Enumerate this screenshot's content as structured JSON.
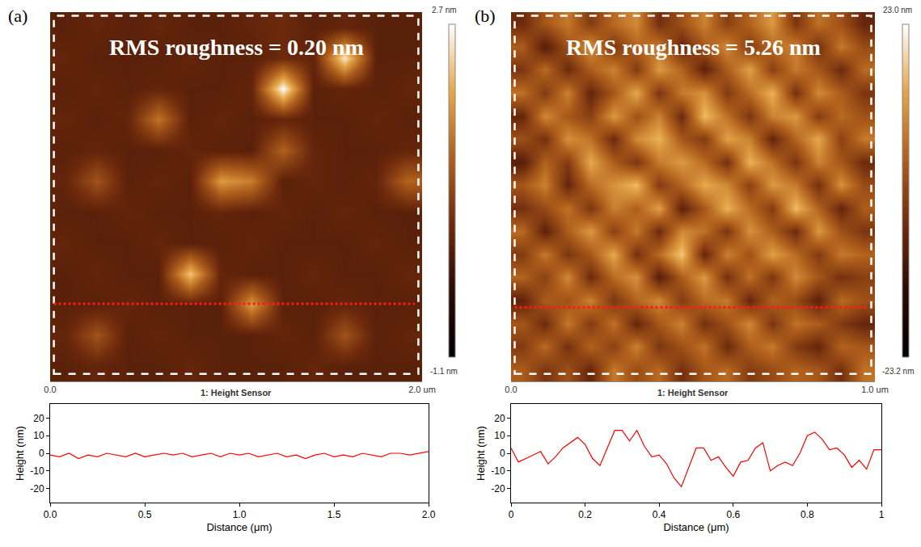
{
  "chart_data": [
    {
      "type": "heatmap",
      "panel": "(a)",
      "annotations": [
        "RMS roughness = 0.20 nm"
      ],
      "xlabel": "1: Height Sensor",
      "xlim": [
        0,
        2.0
      ],
      "xticks": [
        {
          "value": 0,
          "label": "0.0"
        },
        {
          "value": 2.0,
          "label": "2.0 um"
        }
      ],
      "ylim": [
        0,
        2.0
      ],
      "tick_labels": "x",
      "grid": false,
      "zlim": [
        -1.1,
        2.7
      ],
      "zticks": [
        {
          "value": 2.7,
          "label": "2.7 nm"
        },
        {
          "value": -1.1,
          "label": "-1.1 nm"
        }
      ],
      "profile": {
        "y": 0.42,
        "color": "#ff1a1a",
        "line_style": "dotted"
      },
      "z": [
        [
          0.2,
          0.3,
          0.2,
          0.2,
          0.3,
          0.2,
          0.2,
          0.2,
          0.3,
          0.2,
          0.2,
          0.2
        ],
        [
          0.3,
          1.0,
          0.2,
          0.3,
          0.2,
          0.2,
          0.2,
          0.3,
          0.2,
          1.0,
          0.2,
          0.3
        ],
        [
          0.2,
          0.2,
          0.3,
          0.2,
          0.2,
          0.2,
          1.8,
          0.2,
          0.2,
          0.3,
          0.2,
          0.2
        ],
        [
          0.2,
          0.3,
          0.2,
          0.2,
          2.2,
          0.3,
          0.2,
          0.2,
          0.3,
          0.2,
          0.2,
          0.3
        ],
        [
          0.3,
          0.2,
          0.2,
          0.3,
          0.2,
          0.2,
          0.3,
          0.2,
          0.2,
          0.2,
          0.3,
          0.2
        ],
        [
          0.2,
          0.2,
          0.3,
          0.2,
          0.2,
          0.3,
          0.2,
          0.3,
          0.2,
          0.3,
          0.2,
          0.2
        ],
        [
          0.3,
          1.0,
          0.2,
          0.3,
          0.2,
          1.8,
          1.5,
          0.2,
          0.3,
          0.2,
          0.3,
          1.2
        ],
        [
          0.2,
          0.3,
          0.2,
          0.2,
          0.3,
          0.2,
          0.2,
          1.2,
          0.3,
          0.2,
          0.2,
          0.3
        ],
        [
          0.3,
          0.2,
          0.3,
          1.4,
          0.2,
          0.3,
          0.2,
          0.3,
          0.2,
          0.2,
          0.3,
          0.2
        ],
        [
          0.2,
          0.3,
          0.2,
          0.3,
          0.2,
          0.2,
          0.3,
          2.7,
          0.2,
          0.3,
          0.2,
          0.3
        ],
        [
          0.3,
          0.2,
          0.2,
          0.2,
          0.3,
          0.2,
          0.2,
          0.4,
          0.3,
          2.5,
          0.2,
          0.2
        ],
        [
          0.2,
          0.3,
          0.2,
          0.3,
          0.2,
          0.2,
          0.3,
          0.4,
          0.2,
          0.3,
          0.2,
          0.2
        ]
      ]
    },
    {
      "type": "line",
      "xlabel": "Distance (μm)",
      "ylabel": "Height (nm)",
      "color": "#ff0000",
      "grid": false,
      "xlim": [
        0,
        2.0
      ],
      "xticks": [
        {
          "value": 0,
          "label": "0.0"
        },
        0.5,
        {
          "value": 1.0,
          "label": "1.0"
        },
        1.5,
        {
          "value": 2.0,
          "label": "2.0"
        }
      ],
      "ylim": [
        -28,
        28
      ],
      "yticks": [
        -20,
        -10,
        0,
        10,
        20
      ],
      "x": [
        0,
        0.05,
        0.1,
        0.15,
        0.2,
        0.25,
        0.3,
        0.35,
        0.4,
        0.45,
        0.5,
        0.55,
        0.6,
        0.65,
        0.7,
        0.75,
        0.8,
        0.85,
        0.9,
        0.95,
        1.0,
        1.05,
        1.1,
        1.15,
        1.2,
        1.25,
        1.3,
        1.35,
        1.4,
        1.45,
        1.5,
        1.55,
        1.6,
        1.65,
        1.7,
        1.75,
        1.8,
        1.85,
        1.9,
        1.95,
        2.0
      ],
      "values": [
        -1,
        -2,
        0,
        -3,
        -1,
        -2,
        0,
        -1,
        -2,
        0,
        -2,
        -1,
        0,
        -1,
        0,
        -2,
        -1,
        0,
        -2,
        0,
        -1,
        0,
        -2,
        -1,
        0,
        -2,
        -1,
        -3,
        -1,
        0,
        -2,
        -1,
        -2,
        0,
        -1,
        -2,
        0,
        0,
        -1,
        0,
        1
      ]
    },
    {
      "type": "heatmap",
      "panel": "(b)",
      "annotations": [
        "RMS roughness = 5.26 nm"
      ],
      "xlabel": "1: Height Sensor",
      "xlim": [
        0,
        1.0
      ],
      "xticks": [
        {
          "value": 0,
          "label": "0.0"
        },
        {
          "value": 1.0,
          "label": "1.0 um"
        }
      ],
      "ylim": [
        0,
        1.0
      ],
      "tick_labels": "x",
      "grid": false,
      "zlim": [
        -23.2,
        23.0
      ],
      "zticks": [
        {
          "value": 23.0,
          "label": "23.0 nm"
        },
        {
          "value": -23.2,
          "label": "-23.2 nm"
        }
      ],
      "profile": {
        "y": 0.2,
        "color": "#ff1a1a",
        "line_style": "dotted"
      },
      "z": [
        [
          4,
          -3,
          2,
          -6,
          8,
          1,
          6,
          -4,
          3,
          6,
          -2,
          1,
          5,
          3,
          -4,
          7
        ],
        [
          -2,
          6,
          -4,
          5,
          -1,
          9,
          -3,
          2,
          7,
          -5,
          4,
          8,
          -2,
          -6,
          5,
          3
        ],
        [
          3,
          -5,
          8,
          -2,
          7,
          -6,
          3,
          9,
          -4,
          2,
          10,
          -3,
          7,
          4,
          -2,
          -6
        ],
        [
          -7,
          4,
          2,
          9,
          -3,
          5,
          10,
          -2,
          6,
          8,
          -6,
          5,
          1,
          -7,
          6,
          2
        ],
        [
          5,
          -1,
          10,
          -5,
          6,
          11,
          -8,
          4,
          12,
          -4,
          7,
          -3,
          10,
          3,
          -4,
          -1
        ],
        [
          -2,
          8,
          -3,
          3,
          14,
          -4,
          6,
          17,
          -6,
          9,
          2,
          13,
          6,
          -2,
          8,
          5
        ],
        [
          6,
          -7,
          4,
          12,
          -1,
          8,
          -5,
          10,
          7,
          -3,
          11,
          4,
          -5,
          12,
          2,
          -3
        ],
        [
          -4,
          1,
          7,
          -3,
          9,
          4,
          13,
          -7,
          3,
          15,
          6,
          -2,
          16,
          5,
          -6,
          4
        ],
        [
          3,
          9,
          -6,
          6,
          11,
          16,
          -2,
          5,
          14,
          10,
          -1,
          12,
          8,
          -4,
          11,
          1
        ],
        [
          -8,
          5,
          -2,
          14,
          4,
          -3,
          8,
          12,
          6,
          -4,
          15,
          7,
          -3,
          9,
          3,
          -5
        ],
        [
          2,
          -4,
          11,
          7,
          -5,
          10,
          15,
          3,
          -2,
          13,
          9,
          -6,
          5,
          14,
          -1,
          8
        ],
        [
          -6,
          10,
          3,
          -1,
          12,
          2,
          9,
          -5,
          16,
          7,
          -3,
          9,
          12,
          -2,
          6,
          2
        ],
        [
          7,
          -2,
          9,
          -6,
          3,
          14,
          -3,
          8,
          11,
          -2,
          6,
          15,
          -4,
          10,
          4,
          -3
        ],
        [
          -3,
          6,
          -5,
          4,
          9,
          -2,
          12,
          5,
          -7,
          4,
          13,
          -1,
          8,
          3,
          -5,
          6
        ],
        [
          4,
          -8,
          2,
          11,
          -3,
          5,
          8,
          -6,
          3,
          10,
          -2,
          6,
          9,
          -4,
          8,
          1
        ],
        [
          -5,
          3,
          8,
          -2,
          6,
          10,
          -4,
          2,
          9,
          -1,
          5,
          12,
          -3,
          7,
          2,
          -6
        ]
      ]
    },
    {
      "type": "line",
      "xlabel": "Distance (μm)",
      "ylabel": "Height (nm)",
      "color": "#ff0000",
      "grid": false,
      "xlim": [
        0,
        1
      ],
      "xticks": [
        0,
        0.2,
        0.4,
        0.6,
        0.8,
        1
      ],
      "ylim": [
        -28,
        28
      ],
      "yticks": [
        -20,
        -10,
        0,
        10,
        20
      ],
      "x": [
        0,
        0.02,
        0.04,
        0.06,
        0.08,
        0.1,
        0.12,
        0.14,
        0.16,
        0.18,
        0.2,
        0.22,
        0.24,
        0.26,
        0.28,
        0.3,
        0.32,
        0.34,
        0.36,
        0.38,
        0.4,
        0.42,
        0.44,
        0.46,
        0.48,
        0.5,
        0.52,
        0.54,
        0.56,
        0.58,
        0.6,
        0.62,
        0.64,
        0.66,
        0.68,
        0.7,
        0.72,
        0.74,
        0.76,
        0.78,
        0.8,
        0.82,
        0.84,
        0.86,
        0.88,
        0.9,
        0.92,
        0.94,
        0.96,
        0.98,
        1.0
      ],
      "values": [
        3,
        -5,
        -3,
        -1,
        1,
        -6,
        -2,
        3,
        6,
        9,
        5,
        -3,
        -7,
        3,
        13,
        13,
        7,
        13,
        4,
        -2,
        -1,
        -6,
        -14,
        -19,
        -8,
        3,
        3,
        -4,
        -2,
        -8,
        -13,
        -5,
        -4,
        3,
        6,
        -10,
        -7,
        -5,
        -7,
        0,
        10,
        12,
        8,
        2,
        3,
        -1,
        -8,
        -4,
        -9,
        2,
        2
      ]
    }
  ]
}
